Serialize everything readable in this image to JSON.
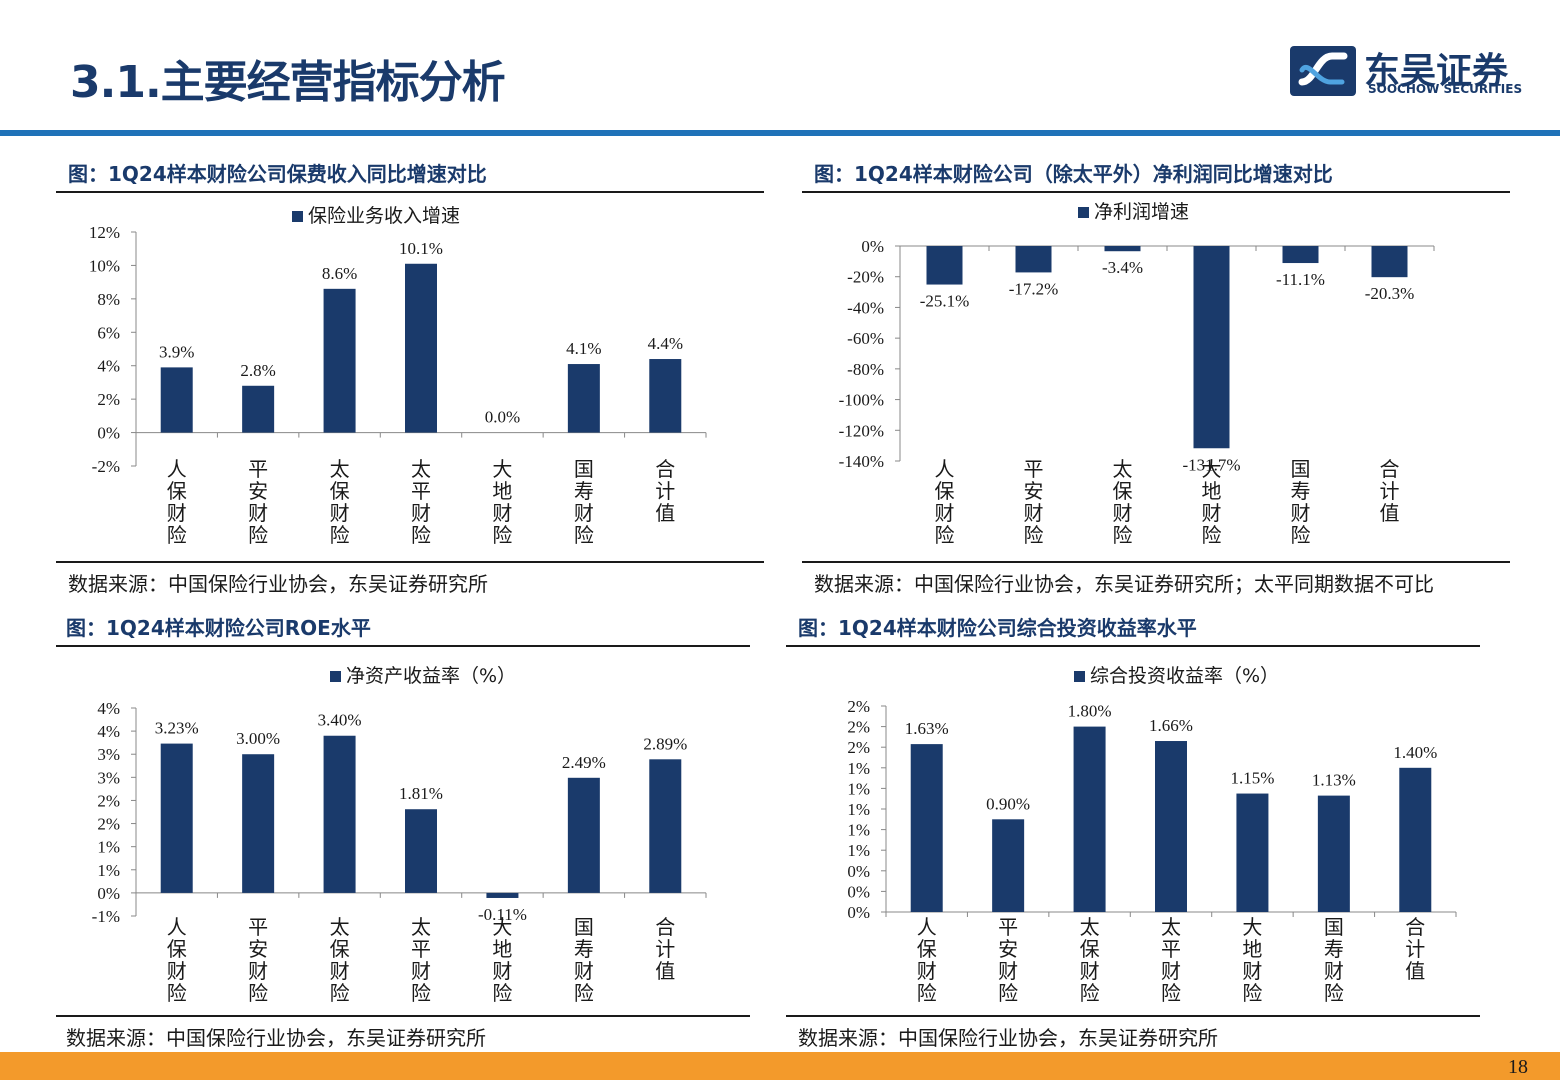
{
  "header": {
    "title": "3.1.主要经营指标分析",
    "logo_cn": "东吴证券",
    "logo_en": "SOOCHOW SECURITIES"
  },
  "colors": {
    "bar": "#1a3a6b",
    "accent_blue": "#1f72b8",
    "footer_orange": "#f39a2b"
  },
  "panels": [
    {
      "title": "图：1Q24样本财险公司保费收入同比增速对比",
      "source": "数据来源：中国保险行业协会，东吴证券研究所"
    },
    {
      "title": "图：1Q24样本财险公司（除太平外）净利润同比增速对比",
      "source": "数据来源：中国保险行业协会，东吴证券研究所；太平同期数据不可比"
    },
    {
      "title": "图：1Q24样本财险公司ROE水平",
      "source": "数据来源：中国保险行业协会，东吴证券研究所"
    },
    {
      "title": "图：1Q24样本财险公司综合投资收益率水平",
      "source": "数据来源：中国保险行业协会，东吴证券研究所"
    }
  ],
  "chart_data": [
    {
      "type": "bar",
      "legend": "保险业务收入增速",
      "categories": [
        "人保财险",
        "平安财险",
        "太保财险",
        "太平财险",
        "大地财险",
        "国寿财险",
        "合计值"
      ],
      "values": [
        3.9,
        2.8,
        8.6,
        10.1,
        0.0,
        4.1,
        4.4
      ],
      "data_labels": [
        "3.9%",
        "2.8%",
        "8.6%",
        "10.1%",
        "0.0%",
        "4.1%",
        "4.4%"
      ],
      "ylim": [
        -2,
        12
      ],
      "yticks": [
        "12%",
        "10%",
        "8%",
        "6%",
        "4%",
        "2%",
        "0%",
        "-2%"
      ]
    },
    {
      "type": "bar",
      "legend": "净利润增速",
      "categories": [
        "人保财险",
        "平安财险",
        "太保财险",
        "大地财险",
        "国寿财险",
        "合计值"
      ],
      "values": [
        -25.1,
        -17.2,
        -3.4,
        -131.7,
        -11.1,
        -20.3
      ],
      "data_labels": [
        "-25.1%",
        "-17.2%",
        "-3.4%",
        "-131.7%",
        "-11.1%",
        "-20.3%"
      ],
      "ylim": [
        -140,
        0
      ],
      "yticks": [
        "0%",
        "-20%",
        "-40%",
        "-60%",
        "-80%",
        "-100%",
        "-120%",
        "-140%"
      ]
    },
    {
      "type": "bar",
      "legend": "净资产收益率（%）",
      "categories": [
        "人保财险",
        "平安财险",
        "太保财险",
        "太平财险",
        "大地财险",
        "国寿财险",
        "合计值"
      ],
      "values": [
        3.23,
        3.0,
        3.4,
        1.81,
        -0.11,
        2.49,
        2.89
      ],
      "data_labels": [
        "3.23%",
        "3.00%",
        "3.40%",
        "1.81%",
        "-0.11%",
        "2.49%",
        "2.89%"
      ],
      "ylim": [
        -0.5,
        4.0
      ],
      "yticks": [
        "4%",
        "4%",
        "3%",
        "3%",
        "2%",
        "2%",
        "1%",
        "1%",
        "0%",
        "-1%"
      ]
    },
    {
      "type": "bar",
      "legend": "综合投资收益率（%）",
      "categories": [
        "人保财险",
        "平安财险",
        "太保财险",
        "太平财险",
        "大地财险",
        "国寿财险",
        "合计值"
      ],
      "values": [
        1.63,
        0.9,
        1.8,
        1.66,
        1.15,
        1.13,
        1.4
      ],
      "data_labels": [
        "1.63%",
        "0.90%",
        "1.80%",
        "1.66%",
        "1.15%",
        "1.13%",
        "1.40%"
      ],
      "ylim": [
        0,
        2.0
      ],
      "yticks": [
        "2%",
        "2%",
        "2%",
        "1%",
        "1%",
        "1%",
        "1%",
        "1%",
        "0%",
        "0%",
        "0%"
      ]
    }
  ],
  "footer": {
    "page_number": "18"
  }
}
